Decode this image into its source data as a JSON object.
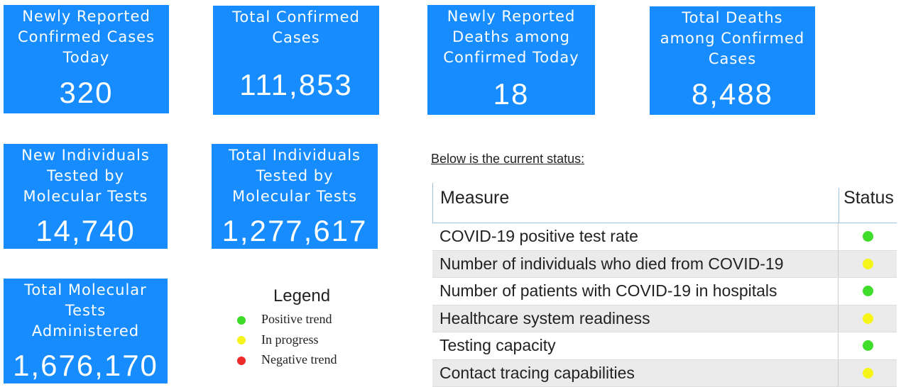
{
  "cards": [
    {
      "label": "Newly Reported\nConfirmed Cases\nToday",
      "value": "320"
    },
    {
      "label": "Total Confirmed\nCases",
      "value": "111,853"
    },
    {
      "label": "Newly Reported\nDeaths among\nConfirmed Today",
      "value": "18"
    },
    {
      "label": "Total Deaths\namong Confirmed\nCases",
      "value": "8,488"
    },
    {
      "label": "New Individuals\nTested by\nMolecular Tests",
      "value": "14,740"
    },
    {
      "label": "Total Individuals\nTested by\nMolecular Tests",
      "value": "1,277,617"
    },
    {
      "label": "Total Molecular\nTests\nAdministered",
      "value": "1,676,170"
    }
  ],
  "legend": {
    "title": "Legend",
    "items": [
      {
        "label": "Positive trend",
        "color": "#3fdc2a"
      },
      {
        "label": "In progress",
        "color": "#f5f51a"
      },
      {
        "label": "Negative trend",
        "color": "#ee2a2a"
      }
    ]
  },
  "status": {
    "intro": "Below is the current status:",
    "headers": [
      "Measure",
      "Status"
    ],
    "rows": [
      {
        "measure": "COVID-19 positive test rate",
        "color": "#3fdc2a"
      },
      {
        "measure": "Number of individuals who died from COVID-19",
        "color": "#f5f51a"
      },
      {
        "measure": "Number of patients with COVID-19 in hospitals",
        "color": "#3fdc2a"
      },
      {
        "measure": "Healthcare system readiness",
        "color": "#f5f51a"
      },
      {
        "measure": "Testing capacity",
        "color": "#3fdc2a"
      },
      {
        "measure": "Contact tracing capabilities",
        "color": "#f5f51a"
      }
    ]
  }
}
